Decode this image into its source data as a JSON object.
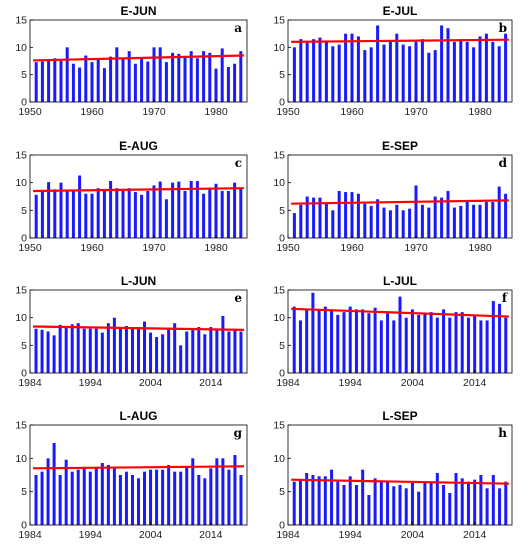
{
  "colors": {
    "bars": "#1a1aff",
    "trend": "#ff0000",
    "axes": "#000000",
    "background": "#ffffff"
  },
  "chart_data": [
    {
      "type": "bar",
      "title": "E-JUN",
      "letter": "a",
      "trend_line": true,
      "x": [
        1951,
        1952,
        1953,
        1954,
        1955,
        1956,
        1957,
        1958,
        1959,
        1960,
        1961,
        1962,
        1963,
        1964,
        1965,
        1966,
        1967,
        1968,
        1969,
        1970,
        1971,
        1972,
        1973,
        1974,
        1975,
        1976,
        1977,
        1978,
        1979,
        1980,
        1981,
        1982,
        1983,
        1984
      ],
      "values": [
        7.3,
        7.4,
        7.5,
        8.0,
        7.5,
        10.0,
        7.0,
        6.3,
        8.5,
        7.3,
        7.8,
        6.2,
        8.3,
        10.0,
        7.8,
        9.3,
        7.0,
        8.0,
        7.4,
        10.0,
        10.0,
        7.3,
        9.0,
        8.8,
        8.3,
        9.3,
        8.0,
        9.3,
        9.0,
        6.1,
        9.8,
        6.4,
        7.0,
        9.3
      ],
      "trend": [
        7.6,
        8.5
      ],
      "xlim": [
        1950,
        1985
      ],
      "ylim": [
        0,
        15
      ],
      "xticks": [
        1950,
        1960,
        1970,
        1980
      ],
      "yticks": [
        0,
        5,
        10,
        15
      ]
    },
    {
      "type": "bar",
      "title": "E-JUL",
      "letter": "b",
      "trend_line": true,
      "x": [
        1951,
        1952,
        1953,
        1954,
        1955,
        1956,
        1957,
        1958,
        1959,
        1960,
        1961,
        1962,
        1963,
        1964,
        1965,
        1966,
        1967,
        1968,
        1969,
        1970,
        1971,
        1972,
        1973,
        1974,
        1975,
        1976,
        1977,
        1978,
        1979,
        1980,
        1981,
        1982,
        1983,
        1984
      ],
      "values": [
        10.0,
        11.5,
        11.0,
        11.5,
        11.8,
        11.0,
        10.2,
        10.5,
        12.5,
        12.5,
        12.0,
        9.5,
        10.0,
        14.0,
        10.5,
        11.0,
        12.5,
        10.5,
        10.2,
        11.0,
        11.5,
        9.0,
        9.5,
        14.0,
        13.5,
        11.0,
        11.5,
        11.0,
        10.0,
        12.0,
        12.5,
        11.0,
        10.2,
        12.5
      ],
      "trend": [
        11.0,
        11.4
      ],
      "xlim": [
        1950,
        1985
      ],
      "ylim": [
        0,
        15
      ],
      "xticks": [
        1950,
        1960,
        1970,
        1980
      ],
      "yticks": [
        0,
        5,
        10,
        15
      ]
    },
    {
      "type": "bar",
      "title": "E-AUG",
      "letter": "c",
      "trend_line": true,
      "x": [
        1951,
        1952,
        1953,
        1954,
        1955,
        1956,
        1957,
        1958,
        1959,
        1960,
        1961,
        1962,
        1963,
        1964,
        1965,
        1966,
        1967,
        1968,
        1969,
        1970,
        1971,
        1972,
        1973,
        1974,
        1975,
        1976,
        1977,
        1978,
        1979,
        1980,
        1981,
        1982,
        1983,
        1984
      ],
      "values": [
        7.8,
        8.5,
        10.1,
        8.8,
        10.0,
        8.5,
        8.5,
        11.3,
        8.0,
        8.0,
        9.0,
        8.5,
        10.3,
        9.0,
        8.5,
        9.0,
        8.3,
        7.8,
        8.5,
        9.5,
        10.2,
        7.0,
        10.0,
        10.2,
        8.5,
        10.3,
        10.3,
        8.0,
        9.0,
        9.8,
        8.5,
        8.5,
        10.0,
        9.0
      ],
      "trend": [
        8.5,
        9.0
      ],
      "xlim": [
        1950,
        1985
      ],
      "ylim": [
        0,
        15
      ],
      "xticks": [
        1950,
        1960,
        1970,
        1980
      ],
      "yticks": [
        0,
        5,
        10,
        15
      ]
    },
    {
      "type": "bar",
      "title": "E-SEP",
      "letter": "d",
      "trend_line": true,
      "x": [
        1951,
        1952,
        1953,
        1954,
        1955,
        1956,
        1957,
        1958,
        1959,
        1960,
        1961,
        1962,
        1963,
        1964,
        1965,
        1966,
        1967,
        1968,
        1969,
        1970,
        1971,
        1972,
        1973,
        1974,
        1975,
        1976,
        1977,
        1978,
        1979,
        1980,
        1981,
        1982,
        1983,
        1984
      ],
      "values": [
        4.5,
        6.0,
        7.5,
        7.3,
        7.3,
        6.3,
        5.0,
        8.5,
        8.3,
        8.3,
        8.0,
        6.2,
        5.8,
        7.0,
        5.5,
        5.0,
        6.0,
        5.0,
        5.3,
        9.5,
        6.0,
        5.5,
        7.5,
        7.3,
        8.5,
        5.5,
        5.8,
        6.8,
        6.0,
        6.0,
        6.5,
        6.5,
        9.3,
        8.0
      ],
      "trend": [
        6.2,
        6.8
      ],
      "xlim": [
        1950,
        1985
      ],
      "ylim": [
        0,
        15
      ],
      "xticks": [
        1950,
        1960,
        1970,
        1980
      ],
      "yticks": [
        0,
        5,
        10,
        15
      ]
    },
    {
      "type": "bar",
      "title": "L-JUN",
      "letter": "e",
      "trend_line": true,
      "x": [
        1985,
        1986,
        1987,
        1988,
        1989,
        1990,
        1991,
        1992,
        1993,
        1994,
        1995,
        1996,
        1997,
        1998,
        1999,
        2000,
        2001,
        2002,
        2003,
        2004,
        2005,
        2006,
        2007,
        2008,
        2009,
        2010,
        2011,
        2012,
        2013,
        2014,
        2015,
        2016,
        2017,
        2018,
        2019
      ],
      "values": [
        8.0,
        7.8,
        7.5,
        6.8,
        8.7,
        8.5,
        8.8,
        9.0,
        8.0,
        8.0,
        8.0,
        7.3,
        9.0,
        10.0,
        8.3,
        8.5,
        8.0,
        8.3,
        9.3,
        7.3,
        6.5,
        7.0,
        8.0,
        9.0,
        5.0,
        7.5,
        8.0,
        8.3,
        7.0,
        8.3,
        8.0,
        10.3,
        7.5,
        7.8,
        7.5
      ],
      "trend": [
        8.4,
        7.8
      ],
      "xlim": [
        1984,
        2020
      ],
      "ylim": [
        0,
        15
      ],
      "xticks": [
        1984,
        1994,
        2004,
        2014
      ],
      "yticks": [
        0,
        5,
        10,
        15
      ]
    },
    {
      "type": "bar",
      "title": "L-JUL",
      "letter": "f",
      "trend_line": true,
      "x": [
        1985,
        1986,
        1987,
        1988,
        1989,
        1990,
        1991,
        1992,
        1993,
        1994,
        1995,
        1996,
        1997,
        1998,
        1999,
        2000,
        2001,
        2002,
        2003,
        2004,
        2005,
        2006,
        2007,
        2008,
        2009,
        2010,
        2011,
        2012,
        2013,
        2014,
        2015,
        2016,
        2017,
        2018,
        2019
      ],
      "values": [
        12.0,
        9.5,
        11.5,
        14.5,
        11.5,
        12.0,
        11.5,
        10.5,
        11.0,
        12.0,
        11.5,
        11.5,
        10.8,
        11.8,
        9.5,
        10.8,
        9.5,
        13.8,
        10.0,
        11.5,
        10.5,
        10.8,
        11.0,
        10.0,
        11.5,
        10.0,
        11.0,
        11.0,
        10.0,
        10.3,
        9.5,
        9.5,
        13.0,
        12.5,
        10.0
      ],
      "trend": [
        11.6,
        10.2
      ],
      "xlim": [
        1984,
        2020
      ],
      "ylim": [
        0,
        15
      ],
      "xticks": [
        1984,
        1994,
        2004,
        2014
      ],
      "yticks": [
        0,
        5,
        10,
        15
      ]
    },
    {
      "type": "bar",
      "title": "L-AUG",
      "letter": "g",
      "trend_line": true,
      "x": [
        1985,
        1986,
        1987,
        1988,
        1989,
        1990,
        1991,
        1992,
        1993,
        1994,
        1995,
        1996,
        1997,
        1998,
        1999,
        2000,
        2001,
        2002,
        2003,
        2004,
        2005,
        2006,
        2007,
        2008,
        2009,
        2010,
        2011,
        2012,
        2013,
        2014,
        2015,
        2016,
        2017,
        2018,
        2019
      ],
      "values": [
        7.5,
        8.0,
        10.0,
        12.3,
        7.5,
        9.8,
        8.0,
        8.3,
        8.5,
        8.0,
        8.5,
        9.3,
        9.0,
        8.5,
        7.5,
        8.0,
        7.5,
        7.0,
        8.0,
        8.3,
        8.3,
        8.3,
        9.0,
        8.0,
        8.0,
        8.8,
        10.0,
        7.5,
        7.0,
        8.5,
        10.0,
        10.0,
        8.3,
        10.5,
        7.5
      ],
      "trend": [
        8.5,
        8.8
      ],
      "xlim": [
        1984,
        2020
      ],
      "ylim": [
        0,
        15
      ],
      "xticks": [
        1984,
        1994,
        2004,
        2014
      ],
      "yticks": [
        0,
        5,
        10,
        15
      ]
    },
    {
      "type": "bar",
      "title": "L-SEP",
      "letter": "h",
      "trend_line": true,
      "x": [
        1985,
        1986,
        1987,
        1988,
        1989,
        1990,
        1991,
        1992,
        1993,
        1994,
        1995,
        1996,
        1997,
        1998,
        1999,
        2000,
        2001,
        2002,
        2003,
        2004,
        2005,
        2006,
        2007,
        2008,
        2009,
        2010,
        2011,
        2012,
        2013,
        2014,
        2015,
        2016,
        2017,
        2018,
        2019
      ],
      "values": [
        6.5,
        6.8,
        7.8,
        7.5,
        7.3,
        7.3,
        8.3,
        6.5,
        6.0,
        7.3,
        6.0,
        8.3,
        4.5,
        7.0,
        6.5,
        6.5,
        5.8,
        6.0,
        5.5,
        6.3,
        5.0,
        6.5,
        6.5,
        7.8,
        6.0,
        4.8,
        7.8,
        7.0,
        6.5,
        6.8,
        7.5,
        5.5,
        7.5,
        5.5,
        6.5
      ],
      "trend": [
        6.8,
        6.2
      ],
      "xlim": [
        1984,
        2020
      ],
      "ylim": [
        0,
        15
      ],
      "xticks": [
        1984,
        1994,
        2004,
        2014
      ],
      "yticks": [
        0,
        5,
        10,
        15
      ]
    }
  ]
}
